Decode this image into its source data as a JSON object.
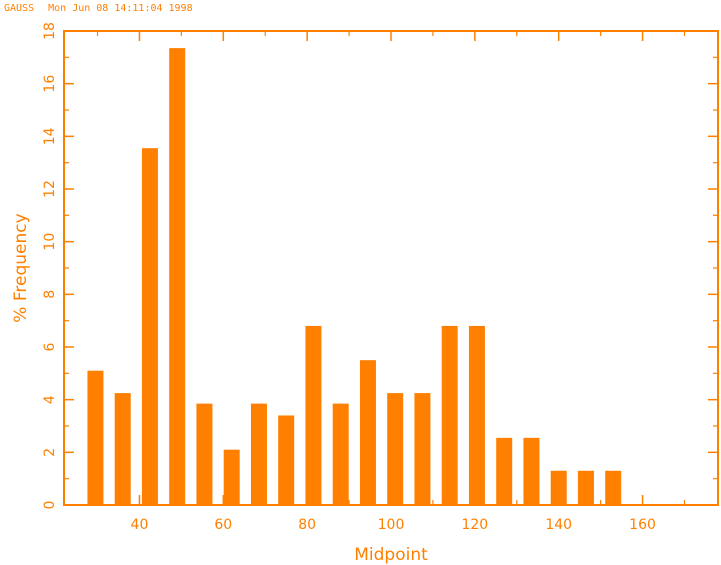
{
  "header": {
    "program": "GAUSS",
    "timestamp": "Mon Jun 08 14:11:04 1998"
  },
  "colors": {
    "accent": "#ff8000"
  },
  "chart_data": {
    "type": "bar",
    "title": "",
    "xlabel": "Midpoint",
    "ylabel": "% Frequency",
    "x": [
      29.5,
      36,
      42.5,
      49,
      55.5,
      62,
      68.5,
      75,
      81.5,
      88,
      94.5,
      101,
      107.5,
      114,
      120.5,
      127,
      133.5,
      140,
      146.5,
      153
    ],
    "values": [
      5.1,
      4.25,
      13.55,
      17.35,
      3.85,
      2.1,
      3.85,
      3.4,
      6.8,
      3.85,
      5.5,
      4.25,
      4.25,
      6.8,
      6.8,
      2.55,
      2.55,
      1.3,
      1.3,
      1.3
    ],
    "xlim": [
      22,
      178
    ],
    "ylim": [
      0,
      18
    ],
    "xticks": [
      40,
      60,
      80,
      100,
      120,
      140,
      160
    ],
    "yticks": [
      0,
      2,
      4,
      6,
      8,
      10,
      12,
      14,
      16,
      18
    ],
    "grid": false,
    "legend": "none"
  }
}
